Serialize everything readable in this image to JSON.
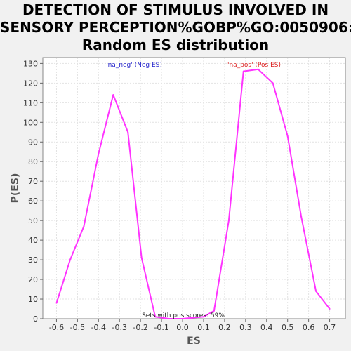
{
  "chart_data": {
    "type": "line",
    "title_lines": [
      "DETECTION OF STIMULUS INVOLVED IN",
      "SENSORY PERCEPTION%GOBP%GO:0050906:",
      "Random ES distribution"
    ],
    "xlabel": "ES",
    "ylabel": "P(ES)",
    "xlim": [
      -0.665,
      0.775
    ],
    "ylim": [
      0,
      133
    ],
    "x_ticks": [
      -0.6,
      -0.5,
      -0.4,
      -0.3,
      -0.2,
      -0.1,
      0.0,
      0.1,
      0.2,
      0.3,
      0.4,
      0.5,
      0.6,
      0.7
    ],
    "x_tick_labels": [
      "-0.6",
      "-0.5",
      "-0.4",
      "-0.3",
      "-0.2",
      "-0.1",
      "0.0",
      "0.1",
      "0.2",
      "0.3",
      "0.4",
      "0.5",
      "0.6",
      "0.7"
    ],
    "y_ticks": [
      0,
      10,
      20,
      30,
      40,
      50,
      60,
      70,
      80,
      90,
      100,
      110,
      120,
      130
    ],
    "y_tick_labels": [
      "0",
      "10",
      "20",
      "30",
      "40",
      "50",
      "60",
      "70",
      "80",
      "90",
      "100",
      "110",
      "120",
      "130"
    ],
    "grid": true,
    "series": [
      {
        "color": "#ff33ff",
        "x": [
          -0.6,
          -0.535,
          -0.47,
          -0.4,
          -0.33,
          -0.26,
          -0.195,
          -0.13,
          -0.065,
          0.0,
          0.1,
          0.15,
          0.22,
          0.29,
          0.36,
          0.43,
          0.5,
          0.565,
          0.635,
          0.7
        ],
        "y": [
          8,
          30,
          47,
          84,
          114,
          95,
          31,
          1,
          0,
          0,
          1,
          4,
          50,
          126,
          127,
          120,
          93,
          52,
          14,
          5
        ]
      }
    ],
    "annotations": {
      "neg": {
        "text": "'na_neg' (Neg ES)",
        "color": "#2222cc"
      },
      "pos": {
        "text": "'na_pos' (Pos ES)",
        "color": "#dd2222"
      },
      "footer": {
        "text": "Sets with pos scores: 59%",
        "color": "#222222"
      }
    }
  }
}
